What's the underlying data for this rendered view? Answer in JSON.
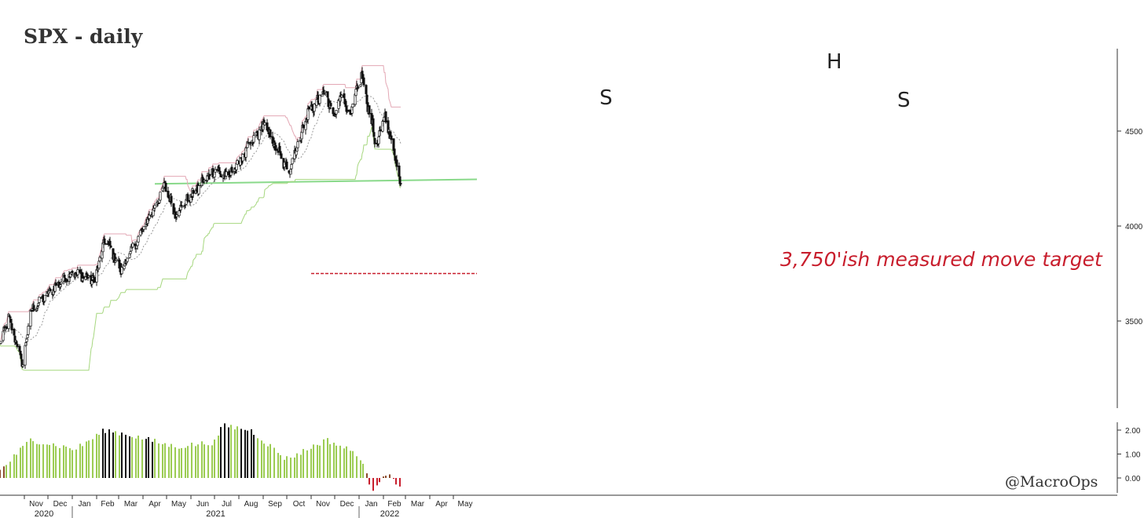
{
  "chart_data": [
    {
      "type": "candlestick",
      "title": "SPX - daily",
      "x_axis": {
        "month_labels": [
          "Nov",
          "Dec",
          "Jan",
          "Feb",
          "Mar",
          "Apr",
          "May",
          "Jun",
          "Jul",
          "Aug",
          "Sep",
          "Oct",
          "Nov",
          "Dec",
          "Jan",
          "Feb",
          "Mar",
          "Apr",
          "May"
        ],
        "year_labels": [
          "2020",
          "2021",
          "2022"
        ],
        "range": [
          "2020-10-01",
          "2022-05-31"
        ]
      },
      "y_axis": {
        "ticks": [
          "3500",
          "4000",
          "4500"
        ],
        "range": [
          3100,
          4950
        ],
        "side": "right"
      },
      "price_keypoints": [
        [
          "2020-10-01",
          3380
        ],
        [
          "2020-10-12",
          3520
        ],
        [
          "2020-10-30",
          3270
        ],
        [
          "2020-11-09",
          3550
        ],
        [
          "2020-11-30",
          3640
        ],
        [
          "2020-12-31",
          3756
        ],
        [
          "2021-01-29",
          3714
        ],
        [
          "2021-02-12",
          3934
        ],
        [
          "2021-03-04",
          3768
        ],
        [
          "2021-03-31",
          3973
        ],
        [
          "2021-04-29",
          4211
        ],
        [
          "2021-05-12",
          4063
        ],
        [
          "2021-06-30",
          4297
        ],
        [
          "2021-07-19",
          4258
        ],
        [
          "2021-08-31",
          4522
        ],
        [
          "2021-09-02",
          4537
        ],
        [
          "2021-09-30",
          4307
        ],
        [
          "2021-10-04",
          4300
        ],
        [
          "2021-10-29",
          4605
        ],
        [
          "2021-11-18",
          4704
        ],
        [
          "2021-11-30",
          4567
        ],
        [
          "2021-12-10",
          4712
        ],
        [
          "2021-12-20",
          4568
        ],
        [
          "2022-01-04",
          4793
        ],
        [
          "2022-01-24",
          4410
        ],
        [
          "2022-02-02",
          4589
        ],
        [
          "2022-02-14",
          4400
        ],
        [
          "2022-02-23",
          4225
        ]
      ],
      "volatility_keypoints": [
        [
          "2020-10-01",
          0.3
        ],
        [
          "2020-11-09",
          1.6
        ],
        [
          "2021-01-05",
          1.2
        ],
        [
          "2021-02-12",
          2.0
        ],
        [
          "2021-03-15",
          1.8
        ],
        [
          "2021-05-12",
          1.3
        ],
        [
          "2021-07-01",
          1.5
        ],
        [
          "2021-07-12",
          2.2
        ],
        [
          "2021-08-16",
          2.0
        ],
        [
          "2021-09-30",
          0.8
        ],
        [
          "2021-10-15",
          1.0
        ],
        [
          "2021-11-20",
          1.6
        ],
        [
          "2021-12-31",
          1.0
        ],
        [
          "2022-01-18",
          -0.5
        ],
        [
          "2022-02-02",
          0.2
        ],
        [
          "2022-02-23",
          -0.3
        ]
      ],
      "volatility_axis": {
        "ticks": [
          "2.00",
          "1.00",
          "0.00"
        ],
        "range": [
          -0.6,
          2.4
        ]
      },
      "neckline": {
        "from": [
          "2021-04-16",
          4222
        ],
        "to": [
          "2022-05-31",
          4246
        ]
      },
      "target_level": {
        "value": 3750,
        "from": "2021-11-01",
        "to": "2022-05-31"
      },
      "annotations": {
        "left_shoulder": "S",
        "head": "H",
        "right_shoulder": "S",
        "target": "3,750'ish measured move target",
        "watermark": "@MacroOps"
      },
      "colors": {
        "candle": "#111111",
        "upper_band": "#e3a7b4",
        "lower_band": "#a6d77f",
        "middle_line": "#999999",
        "neckline": "#89d98a",
        "target": "#c81e2d",
        "bar_green": "#9ccc53",
        "bar_black": "#111111",
        "bar_brown": "#8a4a2a",
        "bar_red": "#c81e2d"
      }
    }
  ]
}
